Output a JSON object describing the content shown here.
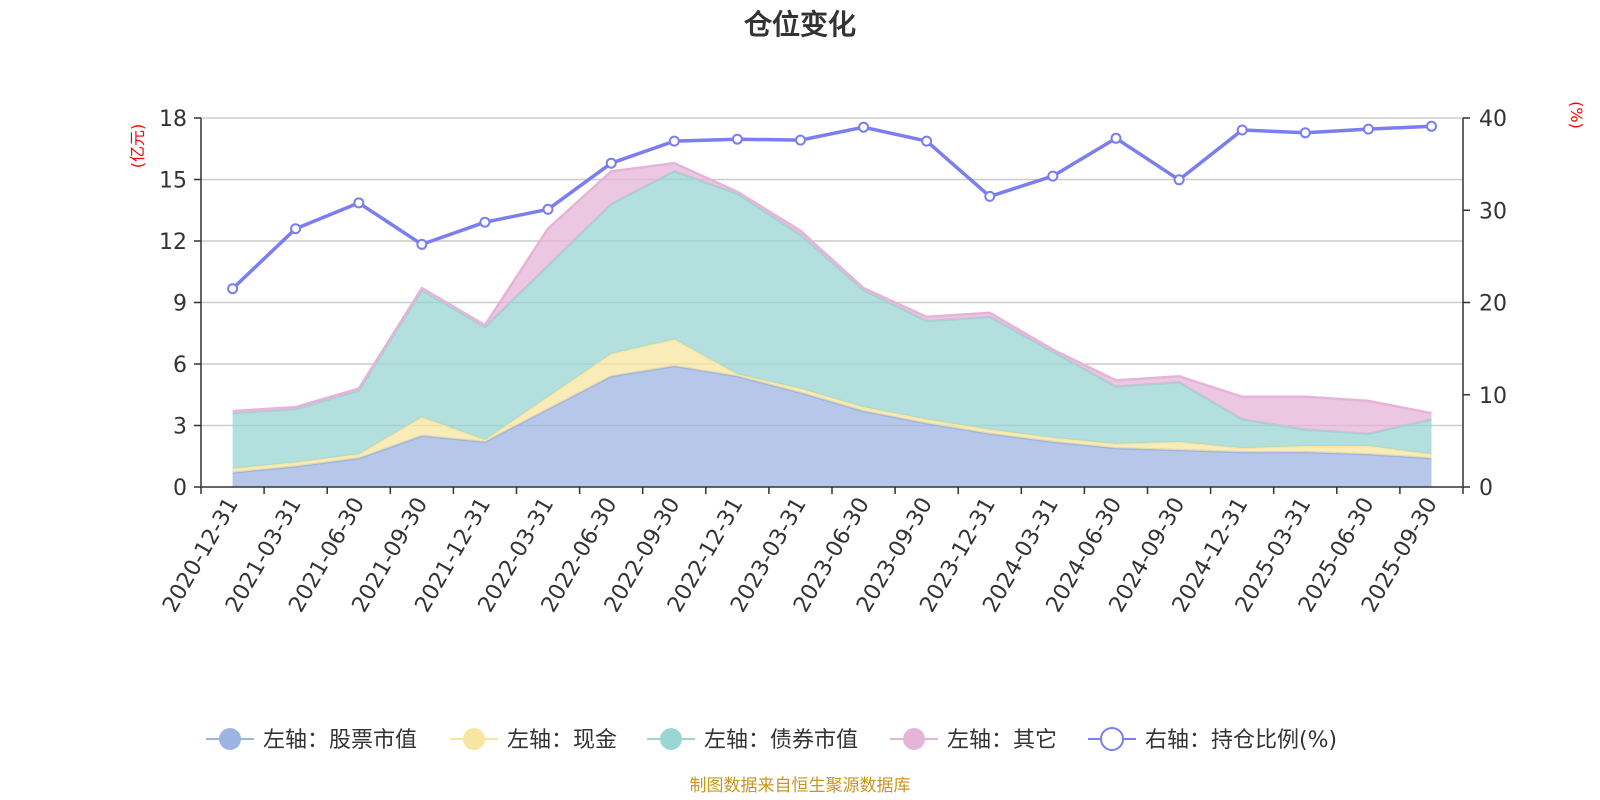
{
  "title": "仓位变化",
  "source": "制图数据来自恒生聚源数据库",
  "left_axis_unit": "(亿元)",
  "right_axis_unit": "(%)",
  "colors": {
    "stock": "#9db4e2",
    "cash": "#f8e6a0",
    "bond": "#9ad6d4",
    "other": "#e6b4d8",
    "ratio": "#7a7ef0",
    "grid": "#cccccc",
    "axis": "#333333",
    "unit": "#ff0000",
    "source": "#c8961e"
  },
  "legend": [
    {
      "key": "stock",
      "label": "左轴：股票市值"
    },
    {
      "key": "cash",
      "label": "左轴：现金"
    },
    {
      "key": "bond",
      "label": "左轴：债券市值"
    },
    {
      "key": "other",
      "label": "左轴：其它"
    },
    {
      "key": "ratio",
      "label": "右轴：持仓比例(%)"
    }
  ],
  "chart_data": {
    "type": "area",
    "title": "仓位变化",
    "stacked": true,
    "categories": [
      "2020-12-31",
      "2021-03-31",
      "2021-06-30",
      "2021-09-30",
      "2021-12-31",
      "2022-03-31",
      "2022-06-30",
      "2022-09-30",
      "2022-12-31",
      "2023-03-31",
      "2023-06-30",
      "2023-09-30",
      "2023-12-31",
      "2024-03-31",
      "2024-06-30",
      "2024-09-30",
      "2024-12-31",
      "2025-03-31",
      "2025-06-30",
      "2025-09-30"
    ],
    "left_axis": {
      "label": "(亿元)",
      "min": 0,
      "max": 18,
      "ticks": [
        0,
        3,
        6,
        9,
        12,
        15,
        18
      ]
    },
    "right_axis": {
      "label": "(%)",
      "min": 0,
      "max": 40,
      "ticks": [
        0,
        10,
        20,
        30,
        40
      ]
    },
    "series": [
      {
        "key": "stock",
        "name": "左轴：股票市值",
        "axis": "left",
        "type": "area",
        "values": [
          0.7,
          1.0,
          1.4,
          2.5,
          2.2,
          3.8,
          5.4,
          5.9,
          5.4,
          4.6,
          3.7,
          3.1,
          2.6,
          2.2,
          1.9,
          1.8,
          1.7,
          1.7,
          1.6,
          1.4
        ]
      },
      {
        "key": "cash",
        "name": "左轴：现金",
        "axis": "left",
        "type": "area",
        "values": [
          0.2,
          0.2,
          0.2,
          0.9,
          0.1,
          0.6,
          1.1,
          1.3,
          0.1,
          0.2,
          0.2,
          0.2,
          0.2,
          0.2,
          0.2,
          0.4,
          0.2,
          0.3,
          0.4,
          0.2
        ]
      },
      {
        "key": "bond",
        "name": "左轴：债券市值",
        "axis": "left",
        "type": "area",
        "values": [
          2.7,
          2.6,
          3.1,
          6.2,
          5.5,
          6.4,
          7.3,
          8.2,
          8.8,
          7.5,
          5.7,
          4.8,
          5.5,
          4.2,
          2.8,
          2.9,
          1.4,
          0.8,
          0.6,
          1.7
        ]
      },
      {
        "key": "other",
        "name": "左轴：其它",
        "axis": "left",
        "type": "area",
        "values": [
          0.1,
          0.1,
          0.1,
          0.1,
          0.1,
          1.8,
          1.6,
          0.4,
          0.1,
          0.2,
          0.1,
          0.2,
          0.2,
          0.1,
          0.3,
          0.3,
          1.1,
          1.6,
          1.6,
          0.3
        ]
      },
      {
        "key": "ratio",
        "name": "右轴：持仓比例(%)",
        "axis": "right",
        "type": "line",
        "values": [
          21.5,
          28.0,
          30.8,
          26.3,
          28.7,
          30.1,
          35.1,
          37.5,
          37.7,
          37.6,
          39.0,
          37.5,
          31.5,
          33.7,
          37.8,
          33.3,
          38.7,
          38.4,
          38.8,
          39.1
        ]
      }
    ]
  }
}
